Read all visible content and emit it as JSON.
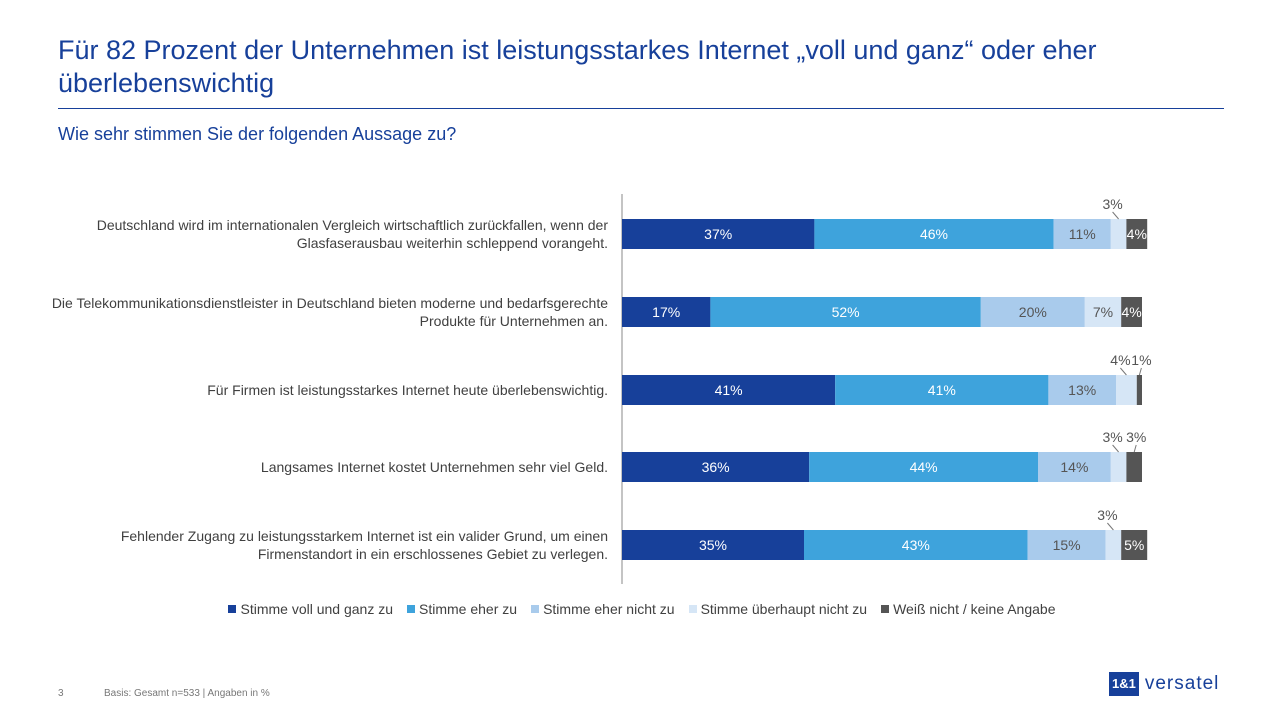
{
  "title": "Für 82 Prozent der Unternehmen ist leistungsstarkes Internet „voll und ganz“ oder eher überlebenswichtig",
  "subtitle": "Wie sehr stimmen Sie der folgenden Aussage zu?",
  "footer": {
    "page": "3",
    "note": "Basis: Gesamt n=533 | Angaben in %",
    "logo_box": "1&1",
    "logo_text": "versatel"
  },
  "chart_data": {
    "type": "bar",
    "orientation": "horizontal-stacked",
    "categories": [
      "Deutschland wird im internationalen Vergleich wirtschaftlich zurückfallen, wenn der Glasfaserausbau weiterhin schleppend vorangeht.",
      "Die Telekommunikationsdienstleister in Deutschland bieten moderne und bedarfsgerechte Produkte für Unternehmen an.",
      "Für Firmen ist leistungsstarkes Internet heute überlebenswichtig.",
      "Langsames Internet kostet Unternehmen sehr viel Geld.",
      "Fehlender Zugang zu leistungsstarkem Internet ist ein valider Grund, um einen Firmenstandort in ein erschlossenes Gebiet zu verlegen."
    ],
    "series": [
      {
        "name": "Stimme voll und ganz zu",
        "color": "#17409a",
        "values": [
          37,
          17,
          41,
          36,
          35
        ]
      },
      {
        "name": "Stimme eher zu",
        "color": "#3ea3dc",
        "values": [
          46,
          52,
          41,
          44,
          43
        ]
      },
      {
        "name": "Stimme eher nicht zu",
        "color": "#a9cbec",
        "values": [
          11,
          20,
          13,
          14,
          15
        ]
      },
      {
        "name": "Stimme überhaupt nicht zu",
        "color": "#d6e6f6",
        "values": [
          3,
          7,
          4,
          3,
          3
        ]
      },
      {
        "name": "Weiß nicht / keine Angabe",
        "color": "#555555",
        "values": [
          4,
          4,
          1,
          3,
          5
        ]
      }
    ],
    "unit": "%",
    "legend": "bottom",
    "grid": false
  }
}
